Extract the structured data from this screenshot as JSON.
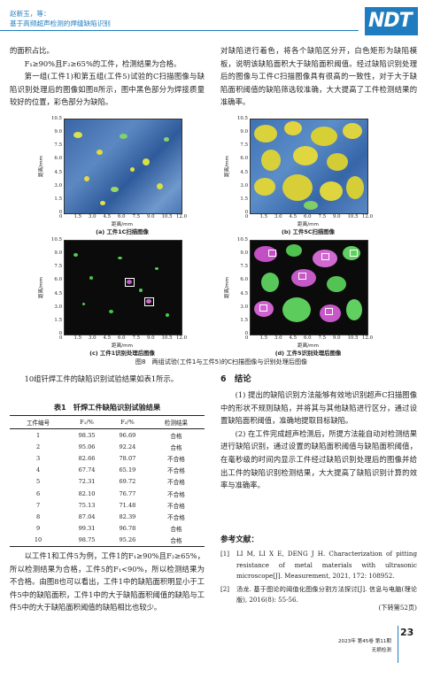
{
  "header": {
    "authors": "赵新玉，等：",
    "title": "基于高频超声检测的焊缝缺陷识别",
    "logo": "NDT"
  },
  "left_top": {
    "p1": "的面积占比。",
    "p2": "F₁≥90%且F₂≥65%的工件，检测结果为合格。",
    "p3": "第一组(工件1)和第五组(工件5)试验的C扫描图像与缺陷识别处理后的图像如图8所示，图中黑色部分为焊接质量较好的位置，彩色部分为缺陷。"
  },
  "right_top": {
    "p1": "对缺陷进行着色，将各个缺陷区分开，白色矩形为缺陷模板，说明该缺陷面积大于缺陷面积阈值。经过缺陷识别处理后的图像与工件C扫描图像具有很高的一致性，对于大于缺陷面积阈值的缺陷筛选较准确，大大提高了工件检测结果的准确率。"
  },
  "figure": {
    "xlabel": "距离/mm",
    "ylabel": "距离/mm",
    "ticks": [
      "0",
      "1.5",
      "3.0",
      "4.5",
      "6.0",
      "7.5",
      "9.0",
      "10.5",
      "12.0"
    ],
    "yticks": [
      "10.5",
      "9.0",
      "7.5",
      "6.0",
      "4.5",
      "3.0",
      "1.5",
      "0"
    ],
    "panels": [
      "(a) 工件1C扫描图像",
      "(b) 工件5C扫描图像",
      "(c) 工件1识别处理后图像",
      "(d) 工件5识别处理后图像"
    ],
    "caption": "图8　两组试验(工件1与工件5)的C扫描图像与识别处理后图像"
  },
  "left_mid": {
    "p1": "10组钎焊工件的缺陷识别试验结果如表1所示。"
  },
  "table": {
    "title": "表1　钎焊工件缺陷识别试验结果",
    "headers": [
      "工件编号",
      "F₁/%",
      "F₂/%",
      "检测结果"
    ],
    "rows": [
      [
        "1",
        "98.35",
        "96.69",
        "合格"
      ],
      [
        "2",
        "95.06",
        "92.24",
        "合格"
      ],
      [
        "3",
        "82.66",
        "78.07",
        "不合格"
      ],
      [
        "4",
        "67.74",
        "65.19",
        "不合格"
      ],
      [
        "5",
        "72.31",
        "69.72",
        "不合格"
      ],
      [
        "6",
        "82.10",
        "76.77",
        "不合格"
      ],
      [
        "7",
        "75.13",
        "71.48",
        "不合格"
      ],
      [
        "8",
        "87.04",
        "82.39",
        "不合格"
      ],
      [
        "9",
        "99.31",
        "96.78",
        "合格"
      ],
      [
        "10",
        "98.75",
        "95.26",
        "合格"
      ]
    ]
  },
  "left_bottom": {
    "p1": "以工件1和工件5为例，工件1的F₁≥90%且F₂≥65%，所以检测结果为合格，工件5的F₁<90%，所以检测结果为不合格。由图8也可以看出，工件1中的缺陷面积明显小于工件5中的缺陷面积，工件1中的大于缺陷面积阈值的缺陷与工件5中的大于缺陷面积阈值的缺陷相比也较少。"
  },
  "conclusion": {
    "heading": "6　结论",
    "p1": "(1) 提出的缺陷识别方法能够有效地识别超声C扫描图像中的形状不规则缺陷，并将其与其他缺陷进行区分，通过设置缺陷面积阈值，准确地提取目标缺陷。",
    "p2": "(2) 在工件完成超声检测后，所提方法能自动对检测结果进行缺陷识别，通过设置的缺陷面积阈值与缺陷面积阈值，在毫秒级的时间内显示工件经过缺陷识别处理后的图像并给出工件的缺陷识别检测结果，大大提高了缺陷识别计算的效率与准确率。"
  },
  "references": {
    "heading": "参考文献：",
    "items": [
      {
        "n": "[1]",
        "text": "LI M, LI X E, DENG J H. Characterization of pitting resistance of metal materials with ultrasonic microscope[J]. Measurement, 2021, 172: 108952."
      },
      {
        "n": "[2]",
        "text": "汤龙. 基于图论的阈值化图像分割方法探讨[J]. 信息与电脑(理论版), 2016(8): 55-56."
      }
    ],
    "continued": "(下转第52页)"
  },
  "footer": {
    "page": "23",
    "journal_line1": "2023年 第45卷 第11期",
    "journal_line2": "无损检测"
  }
}
